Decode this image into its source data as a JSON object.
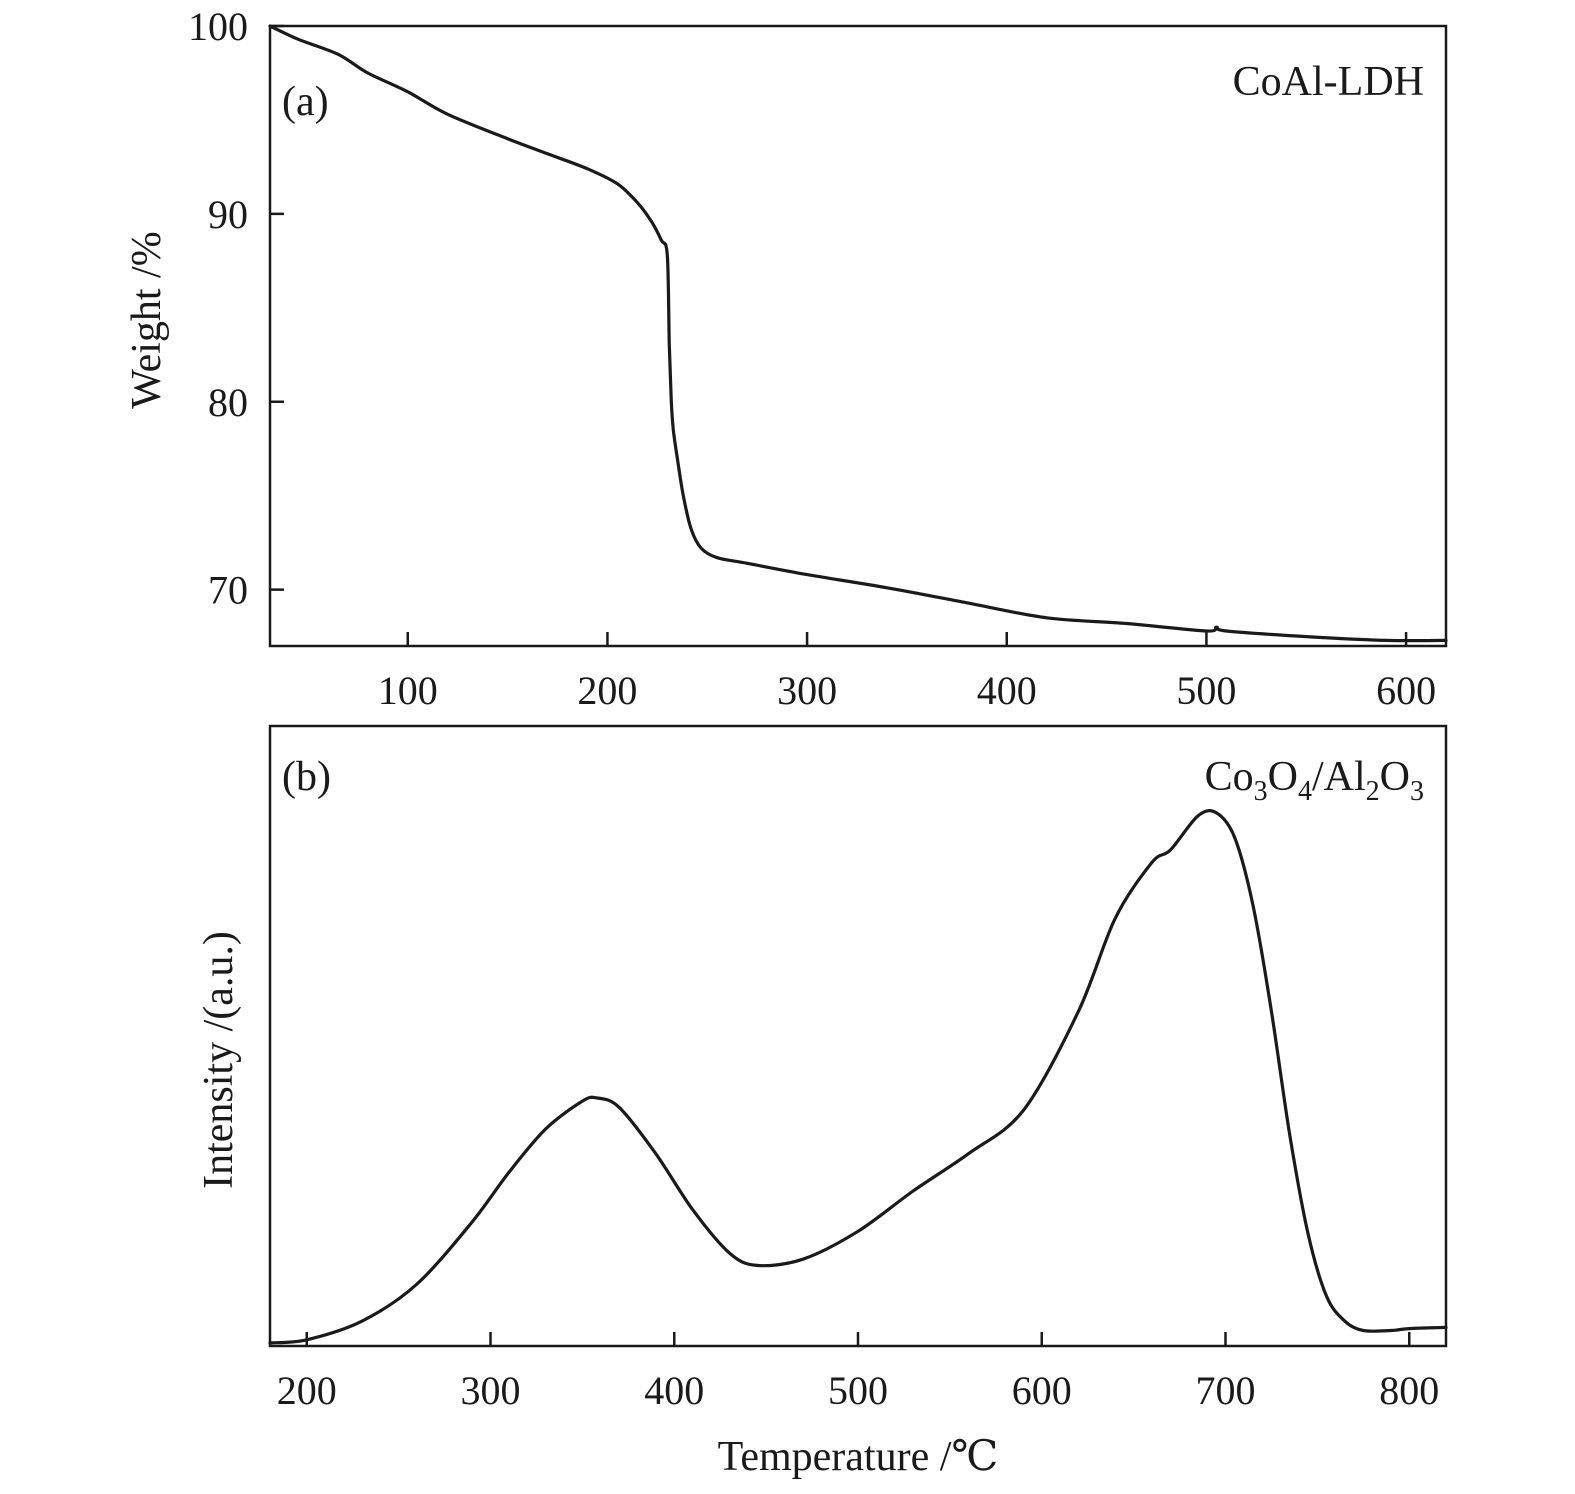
{
  "chart_data": [
    {
      "type": "line",
      "panel_label": "(a)",
      "sample_label": "CoAl-LDH",
      "xlabel": "",
      "ylabel": "Weight /%",
      "xlim": [
        31,
        620
      ],
      "ylim": [
        67,
        100
      ],
      "xticks": [
        100,
        200,
        300,
        400,
        500,
        600
      ],
      "yticks": [
        70,
        80,
        90,
        100
      ],
      "series": [
        {
          "x": [
            31,
            45,
            65,
            80,
            100,
            120,
            150,
            170,
            190,
            205,
            215,
            222,
            227,
            230,
            231,
            232,
            233,
            235,
            238,
            242,
            247,
            255,
            270,
            300,
            340,
            380,
            420,
            460,
            500,
            505,
            510,
            550,
            590,
            620
          ],
          "y": [
            100,
            99.3,
            98.5,
            97.5,
            96.5,
            95.3,
            94.0,
            93.2,
            92.4,
            91.6,
            90.6,
            89.6,
            88.6,
            87.8,
            83.0,
            80.0,
            78.5,
            77.0,
            75.0,
            73.2,
            72.2,
            71.7,
            71.4,
            70.8,
            70.1,
            69.3,
            68.5,
            68.2,
            67.8,
            68.0,
            67.8,
            67.5,
            67.3,
            67.3
          ]
        }
      ]
    },
    {
      "type": "line",
      "panel_label": "(b)",
      "sample_label_parts": [
        "Co",
        "3",
        "O",
        "4",
        "/Al",
        "2",
        "O",
        "3"
      ],
      "xlabel": "Temperature /℃",
      "ylabel": "Intensity /(a.u.)",
      "xlim": [
        180,
        820
      ],
      "ylim": [
        0,
        100
      ],
      "xticks": [
        200,
        300,
        400,
        500,
        600,
        700,
        800
      ],
      "series": [
        {
          "x": [
            180,
            200,
            230,
            260,
            290,
            310,
            330,
            350,
            358,
            370,
            390,
            410,
            430,
            445,
            470,
            500,
            530,
            560,
            590,
            620,
            640,
            660,
            670,
            685,
            695,
            705,
            715,
            725,
            735,
            745,
            755,
            765,
            775,
            790,
            800,
            820
          ],
          "y": [
            0.5,
            1,
            4,
            10,
            20,
            28,
            35,
            39.5,
            40,
            38.5,
            31,
            22,
            15,
            13,
            14,
            18.5,
            25,
            31,
            38,
            54,
            69,
            78,
            80,
            85.5,
            86,
            82,
            71,
            54,
            34,
            18,
            8,
            4,
            2.5,
            2.5,
            2.8,
            3
          ]
        }
      ]
    }
  ]
}
